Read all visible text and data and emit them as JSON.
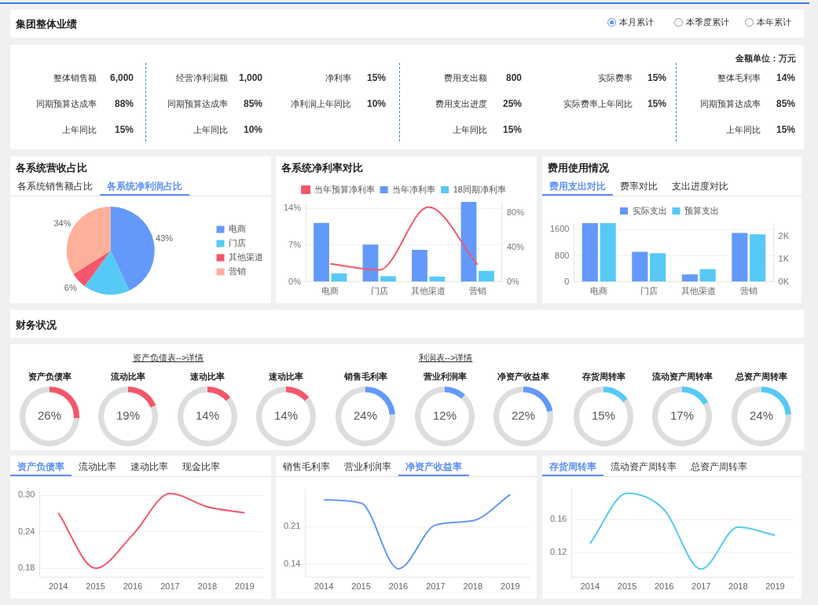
{
  "chart_data": [
    {
      "type": "other",
      "title": "集团整体业绩",
      "annotations": [
        "本月累计",
        "本季度累计",
        "本年累计",
        "金额单位：万元"
      ],
      "categories": [
        "整体销售额",
        "同期预算达成率",
        "上年同比",
        "经营净利润额",
        "同期预算达成率",
        "上年同比",
        "净利率",
        "净利润上年同比",
        "费用支出额",
        "费用支出进度",
        "上年同比",
        "实际费率",
        "实际费率上年同比",
        "整体毛利率",
        "同期预算达成率",
        "上年同比"
      ],
      "value_labels": [
        "6,000",
        "88%",
        "15%",
        "1,000",
        "85%",
        "10%",
        "15%",
        "10%",
        "800",
        "25%",
        "15%",
        "15%",
        "15%",
        "14%",
        "85%",
        "15%"
      ]
    },
    {
      "type": "pie",
      "title": "各系统营收占比",
      "annotations": [
        "各系统销售额占比",
        "各系统净利润占比"
      ],
      "categories": [
        "电商",
        "门店",
        "其他渠道",
        "营销"
      ],
      "values": [
        43,
        17,
        6,
        34
      ],
      "value_labels": [
        "43%",
        null,
        "6%",
        "34%"
      ],
      "colors": [
        "#6399fb",
        "#56c9f6",
        "#f5566b",
        "#feb09a"
      ],
      "legend": "right"
    },
    {
      "type": "bar",
      "title": "各系统净利率对比",
      "categories": [
        "电商",
        "门店",
        "其他渠道",
        "营销"
      ],
      "series": [
        {
          "name": "当年净利率",
          "color": "#6399fb",
          "values": [
            11.2,
            7.1,
            6.1,
            15.2
          ]
        },
        {
          "name": "18同期净利率",
          "color": "#56c9f6",
          "values": [
            1.6,
            1.1,
            1.0,
            2.1
          ]
        },
        {
          "name": "当年预算净利率",
          "type": "line",
          "axis": "y2",
          "color": "#f5566b",
          "values": [
            21,
            14,
            87,
            20
          ]
        }
      ],
      "ylim": [
        0,
        15.2
      ],
      "yticks": [
        {
          "value": 0,
          "label": "0%"
        },
        {
          "value": 7,
          "label": "7%"
        },
        {
          "value": 14,
          "label": "14%"
        }
      ],
      "y2lim": [
        0,
        93
      ],
      "y2ticks": [
        {
          "value": 0,
          "label": "0%"
        },
        {
          "value": 40,
          "label": "40%"
        },
        {
          "value": 80,
          "label": "80%"
        }
      ],
      "grid": "y",
      "legend": "top",
      "marker": "none"
    },
    {
      "type": "bar",
      "title": "费用使用情况",
      "annotations": [
        "费用支出对比",
        "费率对比",
        "支出进度对比"
      ],
      "categories": [
        "电商",
        "门店",
        "其他渠道",
        "营销"
      ],
      "series": [
        {
          "name": "实际支出",
          "color": "#6399fb",
          "values": [
            1800,
            920,
            230,
            1500
          ]
        },
        {
          "name": "预算支出",
          "color": "#56c9f6",
          "values": [
            1800,
            880,
            390,
            1460
          ]
        }
      ],
      "ylim": [
        0,
        1800
      ],
      "yticks": [
        0,
        800,
        1600
      ],
      "y2lim": [
        0,
        2570
      ],
      "y2ticks": [
        {
          "value": 0,
          "label": "0K"
        },
        {
          "value": 1000,
          "label": "1K"
        },
        {
          "value": 2000,
          "label": "2K"
        }
      ],
      "grid": "y",
      "legend": "top"
    },
    {
      "type": "other",
      "title": "财务状况",
      "annotations": [
        "资产负债表-->详情",
        "利润表-->详情"
      ]
    },
    {
      "type": "donut",
      "title": "资产负债率",
      "categories": [
        null,
        null
      ],
      "values": [
        26,
        74
      ],
      "value_labels": [
        "26%",
        null
      ],
      "colors": [
        "#f5566b",
        "#dddddd"
      ]
    },
    {
      "type": "donut",
      "title": "流动比率",
      "categories": [
        null,
        null
      ],
      "values": [
        19,
        81
      ],
      "value_labels": [
        "19%",
        null
      ],
      "colors": [
        "#f5566b",
        "#dddddd"
      ]
    },
    {
      "type": "donut",
      "title": "速动比率",
      "categories": [
        null,
        null
      ],
      "values": [
        14,
        86
      ],
      "value_labels": [
        "14%",
        null
      ],
      "colors": [
        "#f5566b",
        "#dddddd"
      ]
    },
    {
      "type": "donut",
      "title": "速动比率",
      "categories": [
        null,
        null
      ],
      "values": [
        14,
        86
      ],
      "value_labels": [
        "14%",
        null
      ],
      "colors": [
        "#f5566b",
        "#dddddd"
      ]
    },
    {
      "type": "donut",
      "title": "销售毛利率",
      "categories": [
        null,
        null
      ],
      "values": [
        24,
        76
      ],
      "value_labels": [
        "24%",
        null
      ],
      "colors": [
        "#6399fb",
        "#dddddd"
      ]
    },
    {
      "type": "donut",
      "title": "营业利润率",
      "categories": [
        null,
        null
      ],
      "values": [
        12,
        88
      ],
      "value_labels": [
        "12%",
        null
      ],
      "colors": [
        "#6399fb",
        "#dddddd"
      ]
    },
    {
      "type": "donut",
      "title": "净资产收益率",
      "categories": [
        null,
        null
      ],
      "values": [
        22,
        78
      ],
      "value_labels": [
        "22%",
        null
      ],
      "colors": [
        "#6399fb",
        "#dddddd"
      ]
    },
    {
      "type": "donut",
      "title": "存货周转率",
      "categories": [
        null,
        null
      ],
      "values": [
        15,
        85
      ],
      "value_labels": [
        "15%",
        null
      ],
      "colors": [
        "#56c9f6",
        "#dddddd"
      ]
    },
    {
      "type": "donut",
      "title": "流动资产周转率",
      "categories": [
        null,
        null
      ],
      "values": [
        17,
        83
      ],
      "value_labels": [
        "17%",
        null
      ],
      "colors": [
        "#56c9f6",
        "#dddddd"
      ]
    },
    {
      "type": "donut",
      "title": "总资产周转率",
      "categories": [
        null,
        null
      ],
      "values": [
        24,
        76
      ],
      "value_labels": [
        "24%",
        null
      ],
      "colors": [
        "#56c9f6",
        "#dddddd"
      ]
    },
    {
      "type": "line",
      "annotations": [
        "资产负债率",
        "流动比率",
        "速动比率",
        "现金比率"
      ],
      "categories": [
        "2014",
        "2015",
        "2016",
        "2017",
        "2018",
        "2019"
      ],
      "series": [
        {
          "color": "#f5566b",
          "values": [
            0.271,
            0.18,
            0.235,
            0.303,
            0.281,
            0.271
          ]
        }
      ],
      "ylim": [
        0.165,
        0.31
      ],
      "yticks": [
        0.18,
        0.24,
        {
          "value": 0.3,
          "label": "0.30"
        }
      ],
      "grid": "y",
      "marker": "none"
    },
    {
      "type": "line",
      "annotations": [
        "销售毛利率",
        "营业利润率",
        "净资产收益率"
      ],
      "categories": [
        "2014",
        "2015",
        "2016",
        "2017",
        "2018",
        "2019"
      ],
      "series": [
        {
          "color": "#6399fb",
          "values": [
            0.26,
            0.254,
            0.131,
            0.213,
            0.221,
            0.27
          ]
        }
      ],
      "ylim": [
        0.115,
        0.28
      ],
      "yticks": [
        0.14,
        0.21
      ],
      "grid": "y",
      "marker": "none"
    },
    {
      "type": "line",
      "annotations": [
        "存货周转率",
        "流动资产周转率",
        "总资产周转率"
      ],
      "categories": [
        "2014",
        "2015",
        "2016",
        "2017",
        "2018",
        "2019"
      ],
      "series": [
        {
          "color": "#56c9f6",
          "values": [
            0.131,
            0.192,
            0.172,
            0.1,
            0.151,
            0.141
          ]
        }
      ],
      "ylim": [
        0.09,
        0.197
      ],
      "yticks": [
        0.12,
        0.16
      ],
      "grid": "y",
      "marker": "none"
    }
  ]
}
